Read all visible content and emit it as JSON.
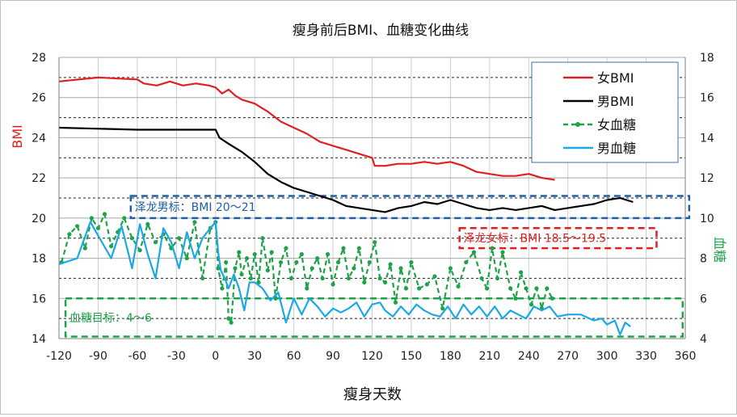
{
  "chart_data": {
    "type": "line",
    "title": "瘦身前后BMI、血糖变化曲线",
    "xlabel": "瘦身天数",
    "ylabel_left": "BMI",
    "ylabel_right": "血糖",
    "xlim": [
      -120,
      360
    ],
    "ylim_left": [
      14,
      28
    ],
    "ylim_right": [
      4,
      18
    ],
    "x_ticks": [
      "-120",
      "-90",
      "-60",
      "-30",
      "0",
      "30",
      "60",
      "90",
      "120",
      "150",
      "180",
      "210",
      "240",
      "270",
      "300",
      "330",
      "360"
    ],
    "y_left_ticks": [
      "14",
      "16",
      "18",
      "20",
      "22",
      "24",
      "26",
      "28"
    ],
    "y_right_ticks": [
      "4",
      "6",
      "8",
      "10",
      "12",
      "14",
      "16",
      "18"
    ],
    "grid": true,
    "legend_position": "top-right",
    "series": [
      {
        "name": "女BMI",
        "axis": "left",
        "color": "#e02020",
        "x": [
          -120,
          -90,
          -60,
          -55,
          -45,
          -35,
          -25,
          -15,
          -5,
          0,
          5,
          10,
          15,
          20,
          30,
          40,
          50,
          60,
          70,
          80,
          90,
          100,
          110,
          120,
          122,
          130,
          140,
          150,
          160,
          170,
          180,
          190,
          200,
          210,
          220,
          230,
          240,
          250,
          260
        ],
        "y": [
          26.8,
          27.0,
          26.9,
          26.7,
          26.6,
          26.8,
          26.6,
          26.7,
          26.6,
          26.5,
          26.2,
          26.4,
          26.1,
          25.9,
          25.7,
          25.3,
          24.8,
          24.5,
          24.2,
          23.8,
          23.6,
          23.4,
          23.2,
          23.0,
          22.6,
          22.6,
          22.7,
          22.7,
          22.8,
          22.7,
          22.8,
          22.6,
          22.3,
          22.2,
          22.1,
          22.1,
          22.2,
          22.0,
          21.9
        ]
      },
      {
        "name": "男BMI",
        "axis": "left",
        "color": "#000000",
        "x": [
          -120,
          -60,
          -30,
          0,
          3,
          10,
          20,
          30,
          40,
          50,
          60,
          70,
          80,
          90,
          100,
          110,
          120,
          130,
          140,
          150,
          160,
          170,
          180,
          190,
          200,
          210,
          220,
          230,
          240,
          250,
          260,
          270,
          280,
          290,
          300,
          310,
          315,
          320
        ],
        "y": [
          24.5,
          24.4,
          24.4,
          24.4,
          24.0,
          23.7,
          23.3,
          22.8,
          22.2,
          21.8,
          21.5,
          21.3,
          21.1,
          20.9,
          20.6,
          20.5,
          20.4,
          20.3,
          20.5,
          20.6,
          20.8,
          20.7,
          20.9,
          20.7,
          20.5,
          20.4,
          20.5,
          20.4,
          20.5,
          20.6,
          20.4,
          20.5,
          20.6,
          20.7,
          20.9,
          21.0,
          20.9,
          20.8
        ]
      },
      {
        "name": "女血糖",
        "axis": "right",
        "color": "#1ea24a",
        "x": [
          -118,
          -112,
          -106,
          -100,
          -95,
          -90,
          -85,
          -80,
          -75,
          -70,
          -64,
          -58,
          -52,
          -46,
          -40,
          -34,
          -28,
          -22,
          -16,
          -10,
          -4,
          0,
          2,
          5,
          8,
          10,
          12,
          15,
          18,
          20,
          24,
          27,
          30,
          33,
          36,
          40,
          43,
          46,
          50,
          54,
          58,
          62,
          66,
          70,
          74,
          78,
          82,
          86,
          90,
          94,
          98,
          102,
          106,
          110,
          114,
          118,
          122,
          126,
          130,
          134,
          138,
          142,
          146,
          150,
          156,
          162,
          168,
          174,
          180,
          186,
          192,
          198,
          204,
          208,
          212,
          216,
          220,
          226,
          230,
          234,
          238,
          242,
          246,
          250,
          254,
          258
        ],
        "y": [
          7.8,
          9.2,
          9.6,
          8.5,
          10.0,
          9.5,
          10.2,
          8.6,
          9.3,
          10.0,
          9.0,
          8.4,
          9.7,
          8.8,
          9.2,
          8.5,
          9.0,
          8.0,
          9.8,
          7.0,
          9.5,
          9.8,
          7.5,
          6.5,
          7.8,
          5.0,
          4.8,
          7.5,
          8.3,
          7.2,
          8.0,
          7.0,
          8.2,
          6.8,
          9.0,
          7.4,
          8.3,
          6.0,
          7.8,
          8.5,
          7.0,
          7.8,
          8.2,
          6.5,
          7.5,
          8.0,
          7.0,
          8.2,
          6.7,
          7.8,
          8.5,
          7.0,
          7.5,
          8.5,
          6.8,
          7.8,
          8.8,
          7.0,
          6.8,
          7.7,
          5.8,
          7.5,
          6.5,
          7.8,
          6.5,
          6.7,
          7.1,
          5.5,
          7.5,
          6.6,
          7.8,
          8.3,
          7.0,
          6.5,
          8.5,
          7.0,
          8.3,
          6.5,
          6.0,
          7.3,
          6.5,
          5.7,
          6.5,
          5.5,
          6.5,
          6.0
        ]
      },
      {
        "name": "男血糖",
        "axis": "right",
        "color": "#1ba9e6",
        "x": [
          -120,
          -106,
          -96,
          -88,
          -80,
          -72,
          -64,
          -58,
          -52,
          -46,
          -40,
          -34,
          -28,
          -22,
          -16,
          -10,
          -4,
          0,
          2,
          4,
          7,
          10,
          14,
          18,
          22,
          26,
          30,
          36,
          42,
          48,
          54,
          60,
          66,
          72,
          78,
          84,
          90,
          96,
          102,
          108,
          114,
          120,
          126,
          130,
          136,
          142,
          148,
          154,
          160,
          166,
          172,
          178,
          184,
          190,
          196,
          202,
          208,
          214,
          220,
          226,
          232,
          238,
          244,
          250,
          256,
          262,
          270,
          280,
          290,
          296,
          300,
          306,
          310,
          314,
          318
        ],
        "y": [
          7.7,
          8.0,
          9.8,
          8.9,
          8.0,
          9.6,
          7.5,
          9.7,
          8.2,
          7.0,
          9.5,
          8.8,
          7.5,
          9.3,
          8.0,
          9.0,
          9.5,
          9.8,
          8.3,
          7.4,
          7.0,
          6.5,
          7.2,
          6.5,
          5.4,
          6.8,
          6.8,
          6.5,
          5.9,
          6.3,
          4.8,
          6.0,
          5.2,
          6.0,
          5.6,
          5.1,
          5.5,
          5.3,
          5.5,
          5.8,
          5.1,
          5.7,
          5.8,
          5.4,
          5.1,
          5.6,
          5.2,
          5.7,
          5.4,
          5.2,
          5.1,
          5.6,
          5.0,
          5.7,
          5.2,
          5.6,
          5.1,
          5.6,
          5.0,
          5.4,
          5.2,
          5.0,
          5.6,
          5.4,
          5.6,
          5.1,
          5.2,
          5.2,
          4.9,
          5.0,
          4.7,
          4.9,
          4.2,
          4.8,
          4.6
        ]
      }
    ],
    "annotations": [
      {
        "text": "泽龙男标：BMI 20～21",
        "color": "#1f5fa8"
      },
      {
        "text": "泽龙女标：BMI 18.5～19.5",
        "color": "#e02020"
      },
      {
        "text": "血糖目标：4～6",
        "color": "#1ea24a"
      }
    ]
  }
}
